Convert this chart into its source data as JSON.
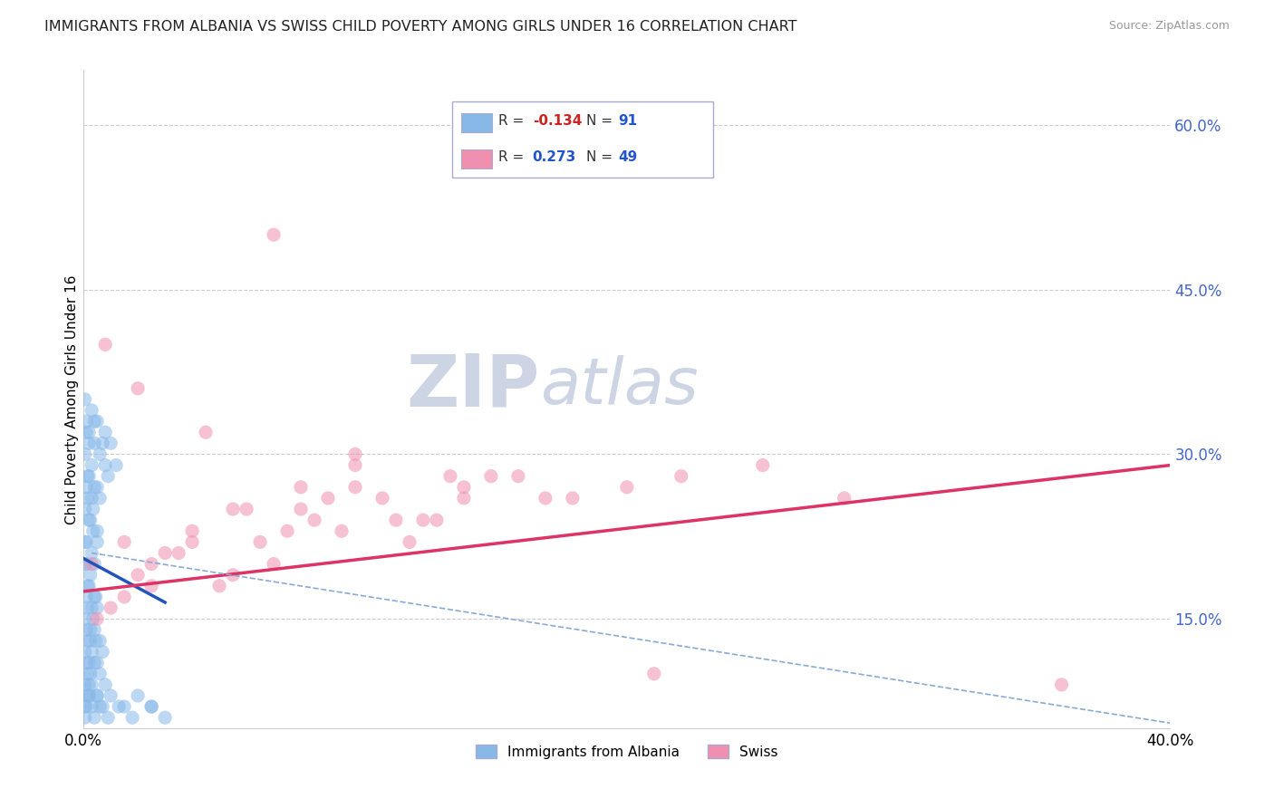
{
  "title": "IMMIGRANTS FROM ALBANIA VS SWISS CHILD POVERTY AMONG GIRLS UNDER 16 CORRELATION CHART",
  "source": "Source: ZipAtlas.com",
  "ylabel": "Child Poverty Among Girls Under 16",
  "xlim": [
    0.0,
    40.0
  ],
  "ylim": [
    5.0,
    65.0
  ],
  "y_ticks_right": [
    15.0,
    30.0,
    45.0,
    60.0
  ],
  "y_ticks_right_labels": [
    "15.0%",
    "30.0%",
    "45.0%",
    "60.0%"
  ],
  "watermark_zip": "ZIP",
  "watermark_atlas": "atlas",
  "legend_entries": [
    {
      "r_label": "R = ",
      "r_val": "-0.134",
      "n_label": "  N = ",
      "n_val": "91",
      "color": "#a8c8f0"
    },
    {
      "r_label": "R =  ",
      "r_val": "0.273",
      "n_label": "  N = ",
      "n_val": "49",
      "color": "#f8b0c8"
    }
  ],
  "legend_bottom": [
    {
      "label": "Immigrants from Albania",
      "color": "#a8c8f0"
    },
    {
      "label": "Swiss",
      "color": "#f8b0c8"
    }
  ],
  "blue_scatter_x": [
    0.05,
    0.1,
    0.15,
    0.2,
    0.25,
    0.3,
    0.35,
    0.4,
    0.45,
    0.5,
    0.05,
    0.1,
    0.15,
    0.2,
    0.25,
    0.3,
    0.35,
    0.4,
    0.45,
    0.5,
    0.05,
    0.1,
    0.15,
    0.2,
    0.25,
    0.3,
    0.35,
    0.4,
    0.5,
    0.6,
    0.05,
    0.1,
    0.15,
    0.2,
    0.25,
    0.3,
    0.4,
    0.5,
    0.6,
    0.7,
    0.05,
    0.1,
    0.15,
    0.2,
    0.3,
    0.4,
    0.5,
    0.7,
    0.8,
    0.9,
    0.05,
    0.1,
    0.15,
    0.2,
    0.25,
    0.3,
    0.4,
    0.5,
    0.6,
    0.8,
    0.05,
    0.1,
    0.2,
    0.3,
    0.4,
    0.5,
    0.6,
    0.8,
    1.0,
    1.2,
    0.05,
    0.1,
    0.2,
    0.3,
    0.5,
    0.7,
    1.0,
    1.5,
    2.0,
    2.5,
    0.05,
    0.1,
    0.2,
    0.4,
    0.6,
    0.9,
    1.3,
    1.8,
    2.5,
    3.0,
    0.05,
    0.1
  ],
  "blue_scatter_y": [
    20.0,
    22.0,
    18.0,
    24.0,
    19.0,
    21.0,
    23.0,
    20.0,
    17.0,
    22.0,
    15.0,
    17.0,
    16.0,
    18.0,
    14.0,
    16.0,
    15.0,
    17.0,
    13.0,
    16.0,
    25.0,
    27.0,
    26.0,
    28.0,
    24.0,
    26.0,
    25.0,
    27.0,
    23.0,
    26.0,
    12.0,
    14.0,
    13.0,
    11.0,
    13.0,
    12.0,
    14.0,
    11.0,
    13.0,
    12.0,
    30.0,
    32.0,
    28.0,
    31.0,
    29.0,
    33.0,
    27.0,
    31.0,
    29.0,
    28.0,
    9.0,
    11.0,
    10.0,
    8.0,
    10.0,
    9.0,
    11.0,
    8.0,
    10.0,
    9.0,
    35.0,
    33.0,
    32.0,
    34.0,
    31.0,
    33.0,
    30.0,
    32.0,
    31.0,
    29.0,
    7.0,
    8.0,
    9.0,
    7.0,
    8.0,
    7.0,
    8.0,
    7.0,
    8.0,
    7.0,
    6.0,
    7.0,
    8.0,
    6.0,
    7.0,
    6.0,
    7.0,
    6.0,
    7.0,
    6.0,
    22.0,
    20.0
  ],
  "pink_scatter_x": [
    0.3,
    1.5,
    2.5,
    4.0,
    5.5,
    7.0,
    8.5,
    10.0,
    12.0,
    14.0,
    1.0,
    2.0,
    3.5,
    5.0,
    6.5,
    8.0,
    9.5,
    11.0,
    13.0,
    15.0,
    0.5,
    2.5,
    4.0,
    6.0,
    8.0,
    10.0,
    12.5,
    16.0,
    20.0,
    25.0,
    1.5,
    3.0,
    5.5,
    7.5,
    9.0,
    11.5,
    14.0,
    18.0,
    22.0,
    28.0,
    0.8,
    2.0,
    4.5,
    7.0,
    10.0,
    13.5,
    17.0,
    21.0,
    36.0
  ],
  "pink_scatter_y": [
    20.0,
    22.0,
    18.0,
    23.0,
    25.0,
    20.0,
    24.0,
    27.0,
    22.0,
    26.0,
    16.0,
    19.0,
    21.0,
    18.0,
    22.0,
    25.0,
    23.0,
    26.0,
    24.0,
    28.0,
    15.0,
    20.0,
    22.0,
    25.0,
    27.0,
    29.0,
    24.0,
    28.0,
    27.0,
    29.0,
    17.0,
    21.0,
    19.0,
    23.0,
    26.0,
    24.0,
    27.0,
    26.0,
    28.0,
    26.0,
    40.0,
    36.0,
    32.0,
    50.0,
    30.0,
    28.0,
    26.0,
    10.0,
    9.0
  ],
  "blue_line_x": [
    0.0,
    3.0
  ],
  "blue_line_y": [
    20.5,
    16.5
  ],
  "pink_line_x": [
    0.0,
    40.0
  ],
  "pink_line_y": [
    17.5,
    29.0
  ],
  "blue_dash_line_x": [
    0.3,
    40.0
  ],
  "blue_dash_line_y": [
    21.0,
    5.5
  ],
  "background_color": "#ffffff",
  "scatter_alpha": 0.55,
  "blue_color": "#88b8e8",
  "pink_color": "#f090b0",
  "grid_color": "#cccccc",
  "title_fontsize": 11.5,
  "axis_label_fontsize": 11,
  "watermark_color": "#cdd5e5",
  "watermark_fontsize_zip": 58,
  "watermark_fontsize_atlas": 52
}
